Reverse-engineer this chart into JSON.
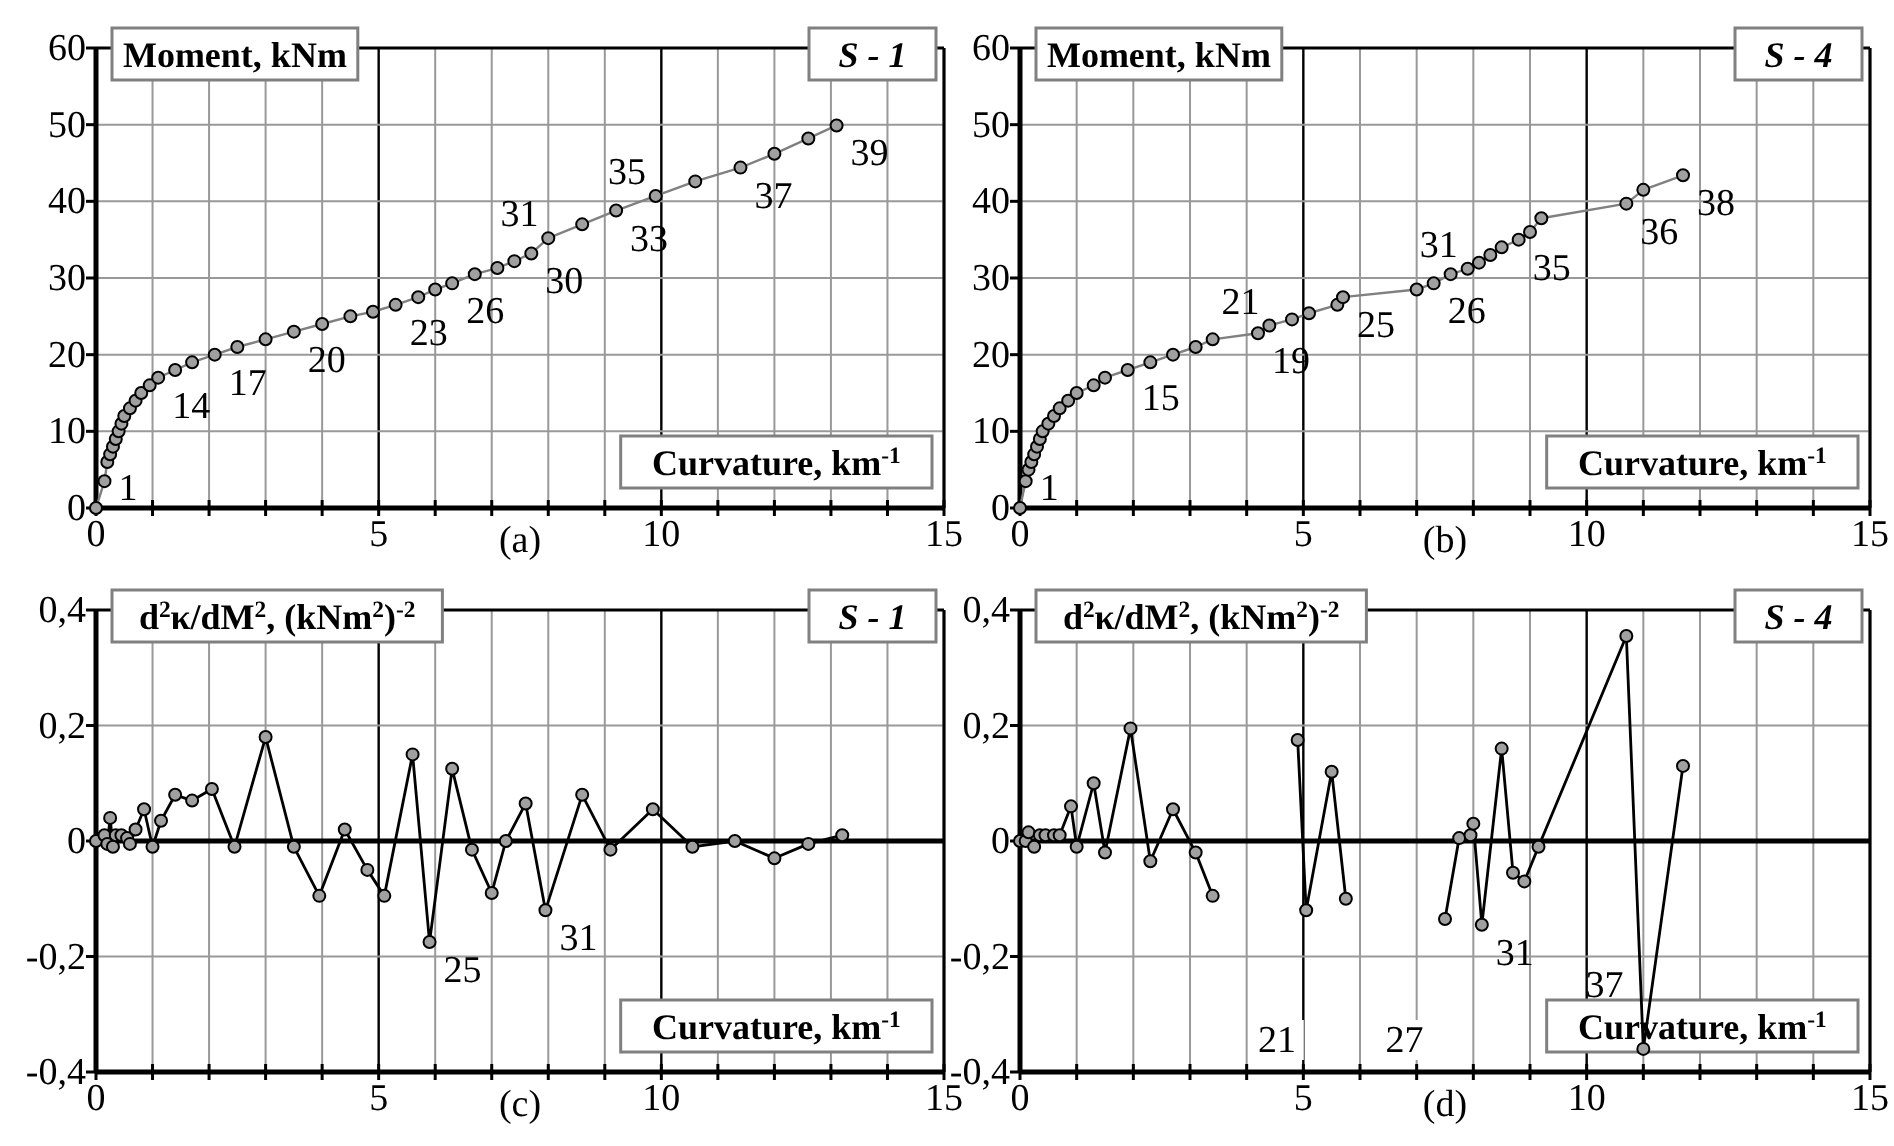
{
  "chart_data": [
    {
      "type": "line",
      "title": "S - 1",
      "ylabel": "Moment, kNm",
      "xlabel": "Curvature, km$^{-1}$",
      "marker": "circle",
      "line_style": "solid",
      "grid": true,
      "xlim": [
        0,
        15
      ],
      "xticks": [
        0,
        {
          "value": 1,
          "label": null
        },
        {
          "value": 2,
          "label": null
        },
        {
          "value": 3,
          "label": null
        },
        {
          "value": 4,
          "label": null
        },
        5,
        {
          "value": 6,
          "label": null
        },
        {
          "value": 7,
          "label": null
        },
        {
          "value": 8,
          "label": null
        },
        {
          "value": 9,
          "label": null
        },
        10,
        {
          "value": 11,
          "label": null
        },
        {
          "value": 12,
          "label": null
        },
        {
          "value": 13,
          "label": null
        },
        {
          "value": 14,
          "label": null
        },
        15
      ],
      "ylim": [
        0,
        60
      ],
      "yticks": [
        0,
        10,
        20,
        30,
        40,
        50,
        60
      ],
      "series": [
        {
          "color": "#808080",
          "x": [
            0,
            0.15,
            0.2,
            0.25,
            0.3,
            0.35,
            0.4,
            0.45,
            0.5,
            0.6,
            0.7,
            0.8,
            0.95,
            1.1,
            1.4,
            1.7,
            2.1,
            2.5,
            3.0,
            3.5,
            4.0,
            4.5,
            4.9,
            5.3,
            5.7,
            6.0,
            6.3,
            6.7,
            7.1,
            7.4,
            7.7,
            8.0,
            8.6,
            9.2,
            9.9,
            10.6,
            11.4,
            12.0,
            12.6,
            13.1
          ],
          "values": [
            0,
            3.5,
            6,
            7,
            8,
            9,
            10,
            11,
            12,
            13,
            14,
            15,
            16,
            17,
            18,
            19,
            20,
            21,
            22,
            23,
            24,
            25,
            25.6,
            26.5,
            27.5,
            28.5,
            29.3,
            30.5,
            31.3,
            32.2,
            33.2,
            35.2,
            37,
            38.8,
            40.7,
            42.6,
            44.4,
            46.2,
            48.2,
            49.9
          ]
        }
      ],
      "annotations": [
        "(a)",
        {
          "text": "1",
          "x": 0.15,
          "y": 3.5
        },
        {
          "text": "14",
          "x": 1.1,
          "y": 17
        },
        {
          "text": "17",
          "x": 2.1,
          "y": 20
        },
        {
          "text": "20",
          "x": 3.5,
          "y": 23
        },
        {
          "text": "23",
          "x": 5.3,
          "y": 26.5
        },
        {
          "text": "26",
          "x": 6.3,
          "y": 29.3
        },
        {
          "text": "30",
          "x": 7.7,
          "y": 33.2
        },
        {
          "text": "31",
          "x": 8.0,
          "y": 35.2
        },
        {
          "text": "33",
          "x": 9.2,
          "y": 38.8
        },
        {
          "text": "35",
          "x": 9.9,
          "y": 40.7
        },
        {
          "text": "37",
          "x": 11.4,
          "y": 44.4
        },
        {
          "text": "39",
          "x": 13.1,
          "y": 49.9
        }
      ]
    },
    {
      "type": "line",
      "title": "S - 4",
      "ylabel": "Moment, kNm",
      "xlabel": "Curvature, km$^{-1}$",
      "marker": "circle",
      "line_style": "solid",
      "grid": true,
      "xlim": [
        0,
        15
      ],
      "xticks": [
        0,
        {
          "value": 1,
          "label": null
        },
        {
          "value": 2,
          "label": null
        },
        {
          "value": 3,
          "label": null
        },
        {
          "value": 4,
          "label": null
        },
        5,
        {
          "value": 6,
          "label": null
        },
        {
          "value": 7,
          "label": null
        },
        {
          "value": 8,
          "label": null
        },
        {
          "value": 9,
          "label": null
        },
        10,
        {
          "value": 11,
          "label": null
        },
        {
          "value": 12,
          "label": null
        },
        {
          "value": 13,
          "label": null
        },
        {
          "value": 14,
          "label": null
        },
        15
      ],
      "ylim": [
        0,
        60
      ],
      "yticks": [
        0,
        10,
        20,
        30,
        40,
        50,
        60
      ],
      "series": [
        {
          "color": "#808080",
          "x": [
            0,
            0.1,
            0.15,
            0.2,
            0.25,
            0.3,
            0.35,
            0.4,
            0.5,
            0.6,
            0.7,
            0.85,
            1.0,
            1.3,
            1.5,
            1.9,
            2.3,
            2.7,
            3.1,
            3.4,
            4.2,
            4.4,
            4.8,
            5.1,
            5.6,
            5.7,
            7.0,
            7.3,
            7.6,
            7.9,
            8.1,
            8.3,
            8.5,
            8.8,
            9.0,
            9.2,
            10.7,
            11.0,
            11.7
          ],
          "values": [
            0,
            3.5,
            5,
            6,
            7,
            8,
            9,
            10,
            11,
            12,
            13,
            14,
            15,
            16,
            17,
            18,
            19,
            20,
            21,
            22,
            22.8,
            23.8,
            24.6,
            25.4,
            26.5,
            27.5,
            28.5,
            29.3,
            30.5,
            31.2,
            32,
            33,
            34,
            35,
            36,
            37.8,
            39.7,
            41.5,
            43.4
          ]
        }
      ],
      "annotations": [
        "(b)",
        {
          "text": "1",
          "x": 0.1,
          "y": 3.5
        },
        {
          "text": "15",
          "x": 1.9,
          "y": 18
        },
        {
          "text": "19",
          "x": 4.2,
          "y": 22.8
        },
        {
          "text": "21",
          "x": 4.4,
          "y": 23.8
        },
        {
          "text": "25",
          "x": 5.7,
          "y": 27.5
        },
        {
          "text": "26",
          "x": 7.3,
          "y": 29.3
        },
        {
          "text": "31",
          "x": 7.9,
          "y": 31.2
        },
        {
          "text": "35",
          "x": 8.8,
          "y": 35
        },
        {
          "text": "36",
          "x": 10.7,
          "y": 39.7
        },
        {
          "text": "38",
          "x": 11.7,
          "y": 43.4
        }
      ]
    },
    {
      "type": "line",
      "title": "S - 1",
      "ylabel": "d$^{2}$κ/dM$^{2}$, (kNm$^{2}$)$^{-2}$",
      "xlabel": "Curvature, km$^{-1}$",
      "marker": "circle",
      "line_style": "solid",
      "grid": true,
      "xlim": [
        0,
        15
      ],
      "xticks": [
        0,
        {
          "value": 1,
          "label": null
        },
        {
          "value": 2,
          "label": null
        },
        {
          "value": 3,
          "label": null
        },
        {
          "value": 4,
          "label": null
        },
        5,
        {
          "value": 6,
          "label": null
        },
        {
          "value": 7,
          "label": null
        },
        {
          "value": 8,
          "label": null
        },
        {
          "value": 9,
          "label": null
        },
        10,
        {
          "value": 11,
          "label": null
        },
        {
          "value": 12,
          "label": null
        },
        {
          "value": 13,
          "label": null
        },
        {
          "value": 14,
          "label": null
        },
        15
      ],
      "ylim": [
        -0.4,
        0.4
      ],
      "yticks": [
        {
          "value": -0.4,
          "label": "-0,4"
        },
        {
          "value": -0.2,
          "label": "-0,2"
        },
        0,
        {
          "value": 0.2,
          "label": "0,2"
        },
        {
          "value": 0.4,
          "label": "0,4"
        }
      ],
      "ref_lines": [
        {
          "axis": "y",
          "value": 0,
          "color": "#000000"
        }
      ],
      "series": [
        {
          "color": "#000000",
          "x": [
            0,
            0.15,
            0.2,
            0.25,
            0.3,
            0.35,
            0.45,
            0.55,
            0.6,
            0.7,
            0.85,
            1.0,
            1.15,
            1.4,
            1.7,
            2.05,
            2.45,
            3.0,
            3.5,
            3.95,
            4.4,
            4.8,
            5.1,
            5.6,
            5.9,
            6.3,
            6.65,
            7.0,
            7.25,
            7.6,
            7.95,
            8.6,
            9.1,
            9.85,
            10.55,
            11.3,
            12.0,
            12.6,
            13.2
          ],
          "values": [
            0,
            0.01,
            -0.005,
            0.04,
            -0.01,
            0.01,
            0.01,
            0.005,
            -0.005,
            0.02,
            0.055,
            -0.01,
            0.035,
            0.08,
            0.07,
            0.09,
            -0.01,
            0.18,
            -0.01,
            -0.095,
            0.02,
            -0.05,
            -0.095,
            0.15,
            -0.175,
            0.125,
            -0.015,
            -0.09,
            0,
            0.065,
            -0.12,
            0.08,
            -0.015,
            0.055,
            -0.01,
            0,
            -0.03,
            -0.005,
            0.01
          ]
        }
      ],
      "annotations": [
        "(c)",
        {
          "text": "25",
          "x": 5.9,
          "y": -0.175
        },
        {
          "text": "31",
          "x": 7.95,
          "y": -0.12
        }
      ]
    },
    {
      "type": "line",
      "title": "S - 4",
      "ylabel": "d$^{2}$κ/dM$^{2}$, (kNm$^{2}$)$^{-2}$",
      "xlabel": "Curvature, km$^{-1}$",
      "marker": "circle",
      "line_style": "solid",
      "grid": true,
      "xlim": [
        0,
        15
      ],
      "xticks": [
        0,
        {
          "value": 1,
          "label": null
        },
        {
          "value": 2,
          "label": null
        },
        {
          "value": 3,
          "label": null
        },
        {
          "value": 4,
          "label": null
        },
        5,
        {
          "value": 6,
          "label": null
        },
        {
          "value": 7,
          "label": null
        },
        {
          "value": 8,
          "label": null
        },
        {
          "value": 9,
          "label": null
        },
        10,
        {
          "value": 11,
          "label": null
        },
        {
          "value": 12,
          "label": null
        },
        {
          "value": 13,
          "label": null
        },
        {
          "value": 14,
          "label": null
        },
        15
      ],
      "ylim": [
        -0.4,
        0.4
      ],
      "yticks": [
        {
          "value": -0.4,
          "label": "-0,4"
        },
        {
          "value": -0.2,
          "label": "-0,2"
        },
        0,
        {
          "value": 0.2,
          "label": "0,2"
        },
        {
          "value": 0.4,
          "label": "0,4"
        }
      ],
      "ref_lines": [
        {
          "axis": "y",
          "value": 0,
          "color": "#000000"
        }
      ],
      "series": [
        {
          "color": "#000000",
          "x": [
            0,
            0.1,
            0.15,
            0.25,
            0.35,
            0.45,
            0.6,
            0.7,
            0.9,
            1.0,
            1.3,
            1.5,
            1.95,
            2.3,
            2.7,
            3.1,
            3.4,
            4.3,
            4.5,
            4.9,
            5.05,
            5.5,
            5.75,
            6.2,
            7.1,
            7.5,
            7.75,
            7.95,
            8.0,
            8.15,
            8.5,
            8.7,
            8.9,
            9.15,
            10.7,
            11.0,
            11.7
          ],
          "values": [
            0,
            0,
            0.015,
            -0.01,
            0.01,
            0.01,
            0.01,
            0.01,
            0.06,
            -0.01,
            0.1,
            -0.02,
            0.195,
            -0.035,
            0.055,
            -0.02,
            -0.095,
            null,
            null,
            0.175,
            -0.12,
            0.12,
            -0.1,
            null,
            null,
            -0.135,
            0.005,
            0.01,
            0.03,
            -0.145,
            0.16,
            -0.055,
            -0.07,
            -0.01,
            0.355,
            -0.36,
            0.13
          ]
        }
      ],
      "annotations": [
        "(d)",
        "21",
        "27",
        {
          "text": "31",
          "x": 8.15,
          "y": -0.145
        },
        {
          "text": "37",
          "x": 11.0,
          "y": -0.36
        }
      ]
    }
  ]
}
